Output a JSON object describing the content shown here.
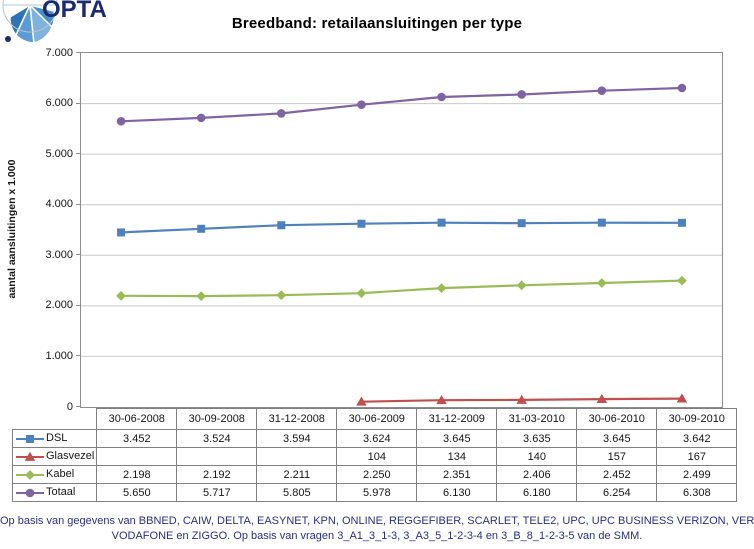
{
  "logo": {
    "text": "OPTA"
  },
  "title": "Breedband: retailaansluitingen per type",
  "chart_data": {
    "type": "line",
    "title": "Breedband: retailaansluitingen per type",
    "xlabel": "",
    "ylabel": "aantal aansluitingen x 1.000",
    "ylim": [
      0,
      7000
    ],
    "ytick_step": 1000,
    "ytick_labels": [
      "0",
      "1.000",
      "2.000",
      "3.000",
      "4.000",
      "5.000",
      "6.000",
      "7.000"
    ],
    "grid": true,
    "legend_position": "table-left",
    "categories": [
      "30-06-2008",
      "30-09-2008",
      "31-12-2008",
      "30-06-2009",
      "31-12-2009",
      "31-03-2010",
      "30-06-2010",
      "30-09-2010"
    ],
    "series": [
      {
        "name": "DSL",
        "color": "#4F81BD",
        "marker": "square",
        "values": [
          3452,
          3524,
          3594,
          3624,
          3645,
          3635,
          3645,
          3642
        ]
      },
      {
        "name": "Glasvezel",
        "color": "#C0504D",
        "marker": "triangle",
        "values": [
          null,
          null,
          null,
          104,
          134,
          140,
          157,
          167
        ]
      },
      {
        "name": "Kabel",
        "color": "#9BBB59",
        "marker": "diamond",
        "values": [
          2198,
          2192,
          2211,
          2250,
          2351,
          2406,
          2452,
          2499
        ]
      },
      {
        "name": "Totaal",
        "color": "#8064A2",
        "marker": "circle",
        "values": [
          5650,
          5717,
          5805,
          5978,
          6130,
          6180,
          6254,
          6308
        ]
      }
    ]
  },
  "table": {
    "rows": [
      {
        "label": "DSL",
        "cells": [
          "3.452",
          "3.524",
          "3.594",
          "3.624",
          "3.645",
          "3.635",
          "3.645",
          "3.642"
        ]
      },
      {
        "label": "Glasvezel",
        "cells": [
          "",
          "",
          "",
          "104",
          "134",
          "140",
          "157",
          "167"
        ]
      },
      {
        "label": "Kabel",
        "cells": [
          "2.198",
          "2.192",
          "2.211",
          "2.250",
          "2.351",
          "2.406",
          "2.452",
          "2.499"
        ]
      },
      {
        "label": "Totaal",
        "cells": [
          "5.650",
          "5.717",
          "5.805",
          "5.978",
          "6.130",
          "6.180",
          "6.254",
          "6.308"
        ]
      }
    ]
  },
  "footer": {
    "line1": "Op basis van gegevens van BBNED, CAIW, DELTA, EASYNET, KPN, ONLINE, REGGEFIBER, SCARLET, TELE2, UPC, UPC BUSINESS VERIZON, VERSATEL,",
    "line2": "VODAFONE en ZIGGO. Op basis van vragen 3_A1_3_1-3, 3_A3_5_1-2-3-4 en 3_B_8_1-2-3-5 van de SMM."
  }
}
